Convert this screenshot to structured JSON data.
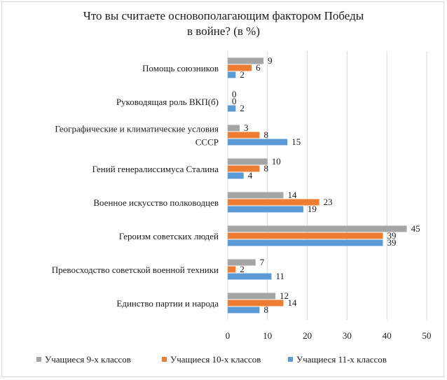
{
  "chart_data": {
    "type": "bar",
    "orientation": "horizontal",
    "title_lines": [
      "Что вы считаете основополагающим фактором Победы",
      "в войне? (в %)"
    ],
    "categories": [
      [
        "Помощь союзников"
      ],
      [
        "Руководящая роль ВКП(б)"
      ],
      [
        "Географические и климатические условия",
        "СССР"
      ],
      [
        "Гений генералиссимуса Сталина"
      ],
      [
        "Военное искусство полководцев"
      ],
      [
        "Героизм советских людей"
      ],
      [
        "Превосходство советской военной техники"
      ],
      [
        "Единство партии и народа"
      ]
    ],
    "series": [
      {
        "name": "Учащиеся 9-х классов",
        "color": "#a5a5a5",
        "values": [
          9,
          0,
          3,
          10,
          14,
          45,
          7,
          12
        ]
      },
      {
        "name": "Учащиеся 10-х классов",
        "color": "#ed7d31",
        "values": [
          6,
          0,
          8,
          8,
          23,
          39,
          2,
          14
        ]
      },
      {
        "name": "Учащиеся 11-х классов",
        "color": "#5b9bd5",
        "values": [
          2,
          2,
          15,
          4,
          19,
          39,
          11,
          8
        ]
      }
    ],
    "xlim": [
      0,
      50
    ],
    "xticks": [
      0,
      10,
      20,
      30,
      40,
      50
    ],
    "grid": true,
    "legend_position": "bottom"
  }
}
